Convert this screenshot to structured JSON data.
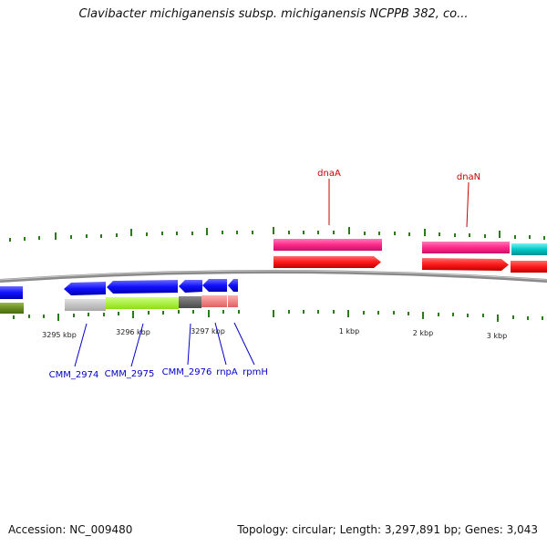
{
  "title": "Clavibacter michiganensis subsp. michiganensis NCPPB 382, co...",
  "accession_label": "Accession: NC_009480",
  "summary_label": "Topology: circular; Length: 3,297,891 bp; Genes: 3,043",
  "colors": {
    "backbone": "#8a8a8a",
    "tick": "#2a7a1a",
    "gene_blue": "#1010ff",
    "gene_olive": "#6b8e23",
    "cds_grey": "#c0c0c0",
    "cds_lime": "#a6ff30",
    "cds_dark": "#666666",
    "cds_salmon": "#f08080",
    "feature_pink": "#ff2a8a",
    "feature_red": "#ff1a1a",
    "feature_cyan": "#00c8c8",
    "label_red": "#cc0000",
    "label_blue": "#0000cc"
  },
  "scale_labels": [
    "3295 kbp",
    "3296 kbp",
    "3297 kbp",
    "1 kbp",
    "2 kbp",
    "3 kbp"
  ],
  "top_gene_labels": [
    "dnaA",
    "dnaN"
  ],
  "bottom_gene_labels": [
    "CMM_2974",
    "CMM_2975",
    "CMM_2976",
    "rnpA",
    "rpmH"
  ]
}
